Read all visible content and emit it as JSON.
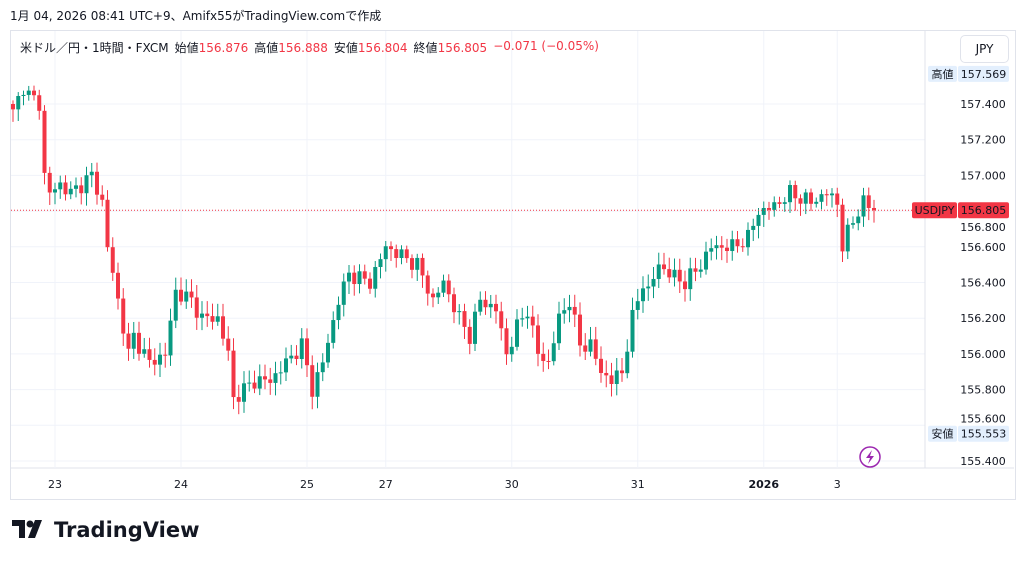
{
  "caption": "1月 04, 2026 08:41 UTC+9、Amifx55がTradingView.comで作成",
  "legend": {
    "symbol": "米ドル／円・1時間・FXCM",
    "open_label": "始値",
    "open": "156.876",
    "high_label": "高値",
    "high": "156.888",
    "low_label": "安値",
    "low": "156.804",
    "close_label": "終値",
    "close": "156.805",
    "change": "−0.071 (−0.05%)"
  },
  "currency_button": "JPY",
  "price_labels": {
    "high_tag": "高値",
    "high_value": "157.569",
    "low_tag": "安値",
    "low_value": "155.553",
    "symbol_tag": "USDJPY",
    "last_value": "156.805"
  },
  "colors": {
    "up": "#089981",
    "down": "#f23645",
    "grid": "#f0f3fa"
  },
  "logo_text": "TradingView",
  "chart_data": {
    "type": "candlestick",
    "interval": "1h",
    "y_ticks": [
      "157.400",
      "157.200",
      "157.000",
      "156.800",
      "156.600",
      "156.400",
      "156.200",
      "156.000",
      "155.800",
      "155.600",
      "155.400"
    ],
    "ylim": [
      155.3,
      157.65
    ],
    "x_ticks": [
      {
        "label": "23",
        "hour": 8
      },
      {
        "label": "24",
        "hour": 32
      },
      {
        "label": "25",
        "hour": 56
      },
      {
        "label": "27",
        "hour": 71
      },
      {
        "label": "30",
        "hour": 95
      },
      {
        "label": "31",
        "hour": 119
      },
      {
        "label": "2026",
        "hour": 143
      },
      {
        "label": "3",
        "hour": 157
      }
    ],
    "last_price": 156.805,
    "high": 157.569,
    "low": 155.553,
    "close_path": [
      [
        0,
        157.35
      ],
      [
        2,
        157.5
      ],
      [
        3,
        157.45
      ],
      [
        5,
        157.4
      ],
      [
        6,
        157.0
      ],
      [
        7,
        156.9
      ],
      [
        9,
        156.95
      ],
      [
        11,
        156.9
      ],
      [
        15,
        157.0
      ],
      [
        17,
        156.85
      ],
      [
        18,
        156.6
      ],
      [
        20,
        156.3
      ],
      [
        22,
        156.0
      ],
      [
        23,
        156.1
      ],
      [
        26,
        155.95
      ],
      [
        29,
        156.0
      ],
      [
        31,
        156.35
      ],
      [
        34,
        156.3
      ],
      [
        36,
        156.2
      ],
      [
        39,
        156.2
      ],
      [
        41,
        156.0
      ],
      [
        42,
        155.75
      ],
      [
        44,
        155.8
      ],
      [
        46,
        155.85
      ],
      [
        49,
        155.85
      ],
      [
        52,
        155.95
      ],
      [
        55,
        156.05
      ],
      [
        57,
        155.8
      ],
      [
        59,
        155.95
      ],
      [
        62,
        156.3
      ],
      [
        64,
        156.45
      ],
      [
        68,
        156.4
      ],
      [
        71,
        156.6
      ],
      [
        74,
        156.55
      ],
      [
        77,
        156.5
      ],
      [
        80,
        156.3
      ],
      [
        82,
        156.4
      ],
      [
        85,
        156.2
      ],
      [
        87,
        156.1
      ],
      [
        89,
        156.3
      ],
      [
        92,
        156.25
      ],
      [
        94,
        156.0
      ],
      [
        96,
        156.15
      ],
      [
        98,
        156.25
      ],
      [
        100,
        156.0
      ],
      [
        102,
        155.95
      ],
      [
        104,
        156.2
      ],
      [
        106,
        156.3
      ],
      [
        108,
        156.05
      ],
      [
        110,
        156.05
      ],
      [
        112,
        155.9
      ],
      [
        114,
        155.85
      ],
      [
        116,
        155.9
      ],
      [
        118,
        156.2
      ],
      [
        120,
        156.4
      ],
      [
        121,
        156.35
      ],
      [
        123,
        156.5
      ],
      [
        125,
        156.45
      ],
      [
        128,
        156.4
      ],
      [
        131,
        156.5
      ],
      [
        133,
        156.6
      ],
      [
        137,
        156.6
      ],
      [
        140,
        156.65
      ],
      [
        142,
        156.8
      ],
      [
        143,
        156.8
      ],
      [
        146,
        156.85
      ],
      [
        148,
        156.9
      ],
      [
        152,
        156.85
      ],
      [
        155,
        156.9
      ],
      [
        157,
        156.85
      ],
      [
        158,
        156.6
      ],
      [
        160,
        156.75
      ],
      [
        162,
        156.85
      ],
      [
        164,
        156.805
      ]
    ]
  }
}
